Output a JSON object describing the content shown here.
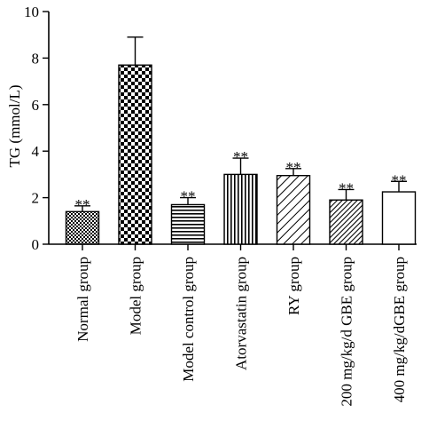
{
  "chart_data": {
    "type": "bar",
    "title": "",
    "xlabel": "",
    "ylabel": "TG (mmol/L)",
    "ylim": [
      0,
      10
    ],
    "yticks": [
      0,
      2,
      4,
      6,
      8,
      10
    ],
    "categories": [
      "Normal group",
      "Model group",
      "Model control group",
      "Atorvastatin group",
      "RY group",
      "200 mg/kg/d GBE group",
      "400 mg/kg/dGBE group"
    ],
    "values": [
      1.4,
      7.7,
      1.7,
      3.0,
      2.95,
      1.9,
      2.25
    ],
    "errors": [
      0.25,
      1.2,
      0.3,
      0.7,
      0.3,
      0.45,
      0.45
    ],
    "significance": [
      "**",
      "",
      "**",
      "**",
      "**",
      "**",
      "**"
    ],
    "patterns": [
      "small-checker",
      "large-checker",
      "horizontal-lines",
      "vertical-lines",
      "diagonal-light",
      "diagonal-dense",
      "none"
    ],
    "grid": false,
    "legend": "none"
  }
}
